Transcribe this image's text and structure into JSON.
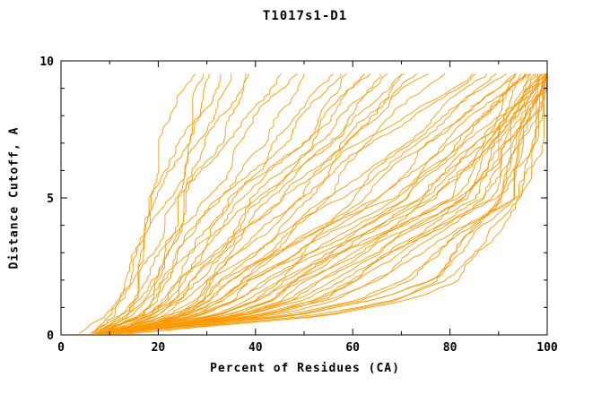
{
  "title": "T1017s1-D1",
  "chart_data": {
    "type": "line",
    "title": "T1017s1-D1",
    "xlabel": "Percent of Residues (CA)",
    "ylabel": "Distance Cutoff, A",
    "xlim": [
      0,
      100
    ],
    "ylim": [
      0,
      10
    ],
    "x_ticks": [
      0,
      20,
      40,
      60,
      80,
      100
    ],
    "x_minor_ticks": [
      10,
      30,
      50,
      70,
      90
    ],
    "y_ticks": [
      0,
      5,
      10
    ],
    "y_minor_ticks": [
      1,
      2,
      3,
      4,
      6,
      7,
      8,
      9
    ],
    "line_color": "#ff9900",
    "axis_color": "#000000",
    "legend": "none",
    "grid": false,
    "series_format": "percent_of_residues_at_cutoffs",
    "cutoffs": [
      0,
      2,
      5,
      9.6
    ],
    "series": [
      [
        6,
        14,
        18,
        27
      ],
      [
        6,
        15,
        20,
        29
      ],
      [
        7,
        16,
        22,
        31
      ],
      [
        5,
        14,
        19,
        33
      ],
      [
        7,
        18,
        24,
        35
      ],
      [
        8,
        19,
        26,
        38
      ],
      [
        6,
        16,
        23,
        40
      ],
      [
        7,
        18,
        26,
        45
      ],
      [
        8,
        20,
        30,
        48
      ],
      [
        6,
        22,
        32,
        52
      ],
      [
        9,
        24,
        35,
        55
      ],
      [
        7,
        20,
        33,
        58
      ],
      [
        8,
        26,
        38,
        60
      ],
      [
        10,
        28,
        40,
        62
      ],
      [
        7,
        22,
        36,
        64
      ],
      [
        9,
        30,
        44,
        66
      ],
      [
        8,
        24,
        40,
        68
      ],
      [
        11,
        32,
        48,
        70
      ],
      [
        7,
        26,
        42,
        72
      ],
      [
        10,
        34,
        50,
        74
      ],
      [
        8,
        28,
        46,
        76
      ],
      [
        9,
        36,
        54,
        78
      ],
      [
        8,
        25,
        45,
        85
      ],
      [
        9,
        30,
        50,
        86
      ],
      [
        10,
        35,
        55,
        88
      ],
      [
        8,
        40,
        60,
        90
      ],
      [
        11,
        30,
        58,
        92
      ],
      [
        9,
        45,
        65,
        93
      ],
      [
        10,
        38,
        62,
        94
      ],
      [
        12,
        50,
        70,
        95
      ],
      [
        8,
        34,
        66,
        95
      ],
      [
        9,
        42,
        72,
        96
      ],
      [
        11,
        55,
        75,
        96
      ],
      [
        10,
        36,
        68,
        97
      ],
      [
        8,
        48,
        78,
        97
      ],
      [
        12,
        40,
        74,
        98
      ],
      [
        9,
        52,
        80,
        98
      ],
      [
        10,
        60,
        82,
        98
      ],
      [
        11,
        44,
        76,
        99
      ],
      [
        8,
        56,
        84,
        99
      ],
      [
        9,
        38,
        70,
        99
      ],
      [
        12,
        62,
        86,
        100
      ],
      [
        10,
        46,
        80,
        100
      ],
      [
        9,
        58,
        88,
        100
      ],
      [
        11,
        50,
        84,
        100
      ],
      [
        8,
        64,
        90,
        100
      ],
      [
        10,
        42,
        78,
        100
      ],
      [
        12,
        54,
        86,
        100
      ],
      [
        9,
        66,
        92,
        100
      ],
      [
        11,
        48,
        82,
        100
      ],
      [
        10,
        70,
        94,
        100
      ],
      [
        8,
        60,
        88,
        100
      ],
      [
        10,
        75,
        90,
        98
      ],
      [
        12,
        80,
        93,
        100
      ],
      [
        9,
        72,
        90,
        99
      ],
      [
        11,
        78,
        92,
        100
      ],
      [
        13,
        82,
        94,
        100
      ],
      [
        10,
        76,
        91,
        100
      ]
    ]
  }
}
